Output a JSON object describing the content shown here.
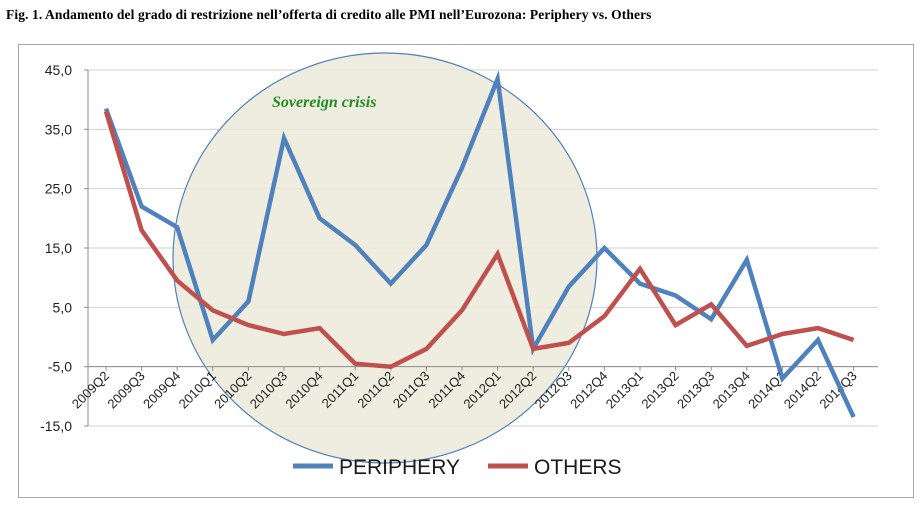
{
  "title": "Fig. 1. Andamento  del grado  di restrizione nell’offerta di credito alle PMI nell’Eurozona:  Periphery  vs.  Others",
  "chart_data": {
    "type": "line",
    "categories": [
      "2009Q2",
      "2009Q3",
      "2009Q4",
      "2010Q1",
      "2010Q2",
      "2010Q3",
      "2010Q4",
      "2011Q1",
      "2011Q2",
      "2011Q3",
      "2011Q4",
      "2012Q1",
      "2012Q2",
      "2012Q3",
      "2012Q4",
      "2013Q1",
      "2013Q2",
      "2013Q3",
      "2013Q4",
      "2014Q1",
      "2014Q2",
      "2014Q3"
    ],
    "series": [
      {
        "name": "PERIPHERY",
        "color": "#4f81bd",
        "values": [
          38.5,
          22.0,
          18.5,
          -0.5,
          6.0,
          33.5,
          20.0,
          15.5,
          9.0,
          15.5,
          28.5,
          43.5,
          -2.0,
          8.5,
          15.0,
          9.0,
          7.0,
          3.0,
          13.0,
          -7.0,
          -0.5,
          -13.5
        ]
      },
      {
        "name": "OTHERS",
        "color": "#c0504d",
        "values": [
          38.0,
          18.0,
          9.5,
          4.5,
          2.0,
          0.5,
          1.5,
          -4.5,
          -5.0,
          -2.0,
          4.5,
          14.0,
          -2.0,
          -1.0,
          3.5,
          11.5,
          2.0,
          5.5,
          -1.5,
          0.5,
          1.5,
          -0.5
        ]
      }
    ],
    "y_ticks": [
      "45,0",
      "35,0",
      "25,0",
      "15,0",
      "5,0",
      "-5,0",
      "-15,0"
    ],
    "ylim": [
      -15,
      45
    ],
    "grid": true,
    "legend_position": "bottom",
    "annotation": {
      "text": "Sovereign crisis",
      "fill": "#ecead9",
      "stroke": "#4f81bd"
    }
  }
}
